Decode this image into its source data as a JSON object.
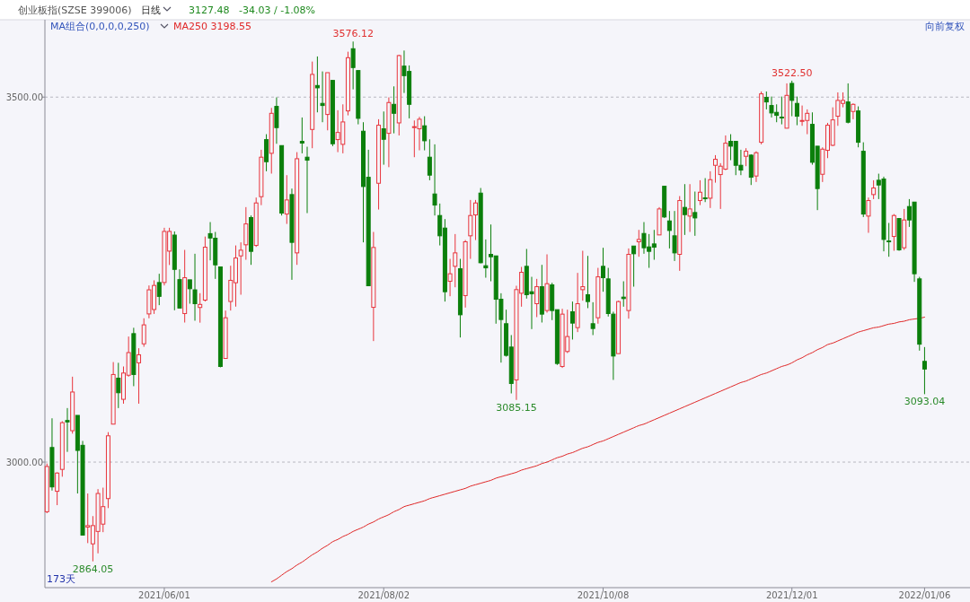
{
  "chart_data": {
    "type": "candlestick",
    "title": "创业板指(SZSE 399006)",
    "subtitle": "日线",
    "annotations": [
      "3127.48",
      "-34.03 / -1.08%",
      "MA组合(0,0,0,0,250)",
      "向前复权",
      "173天",
      {
        "text": "3576.12",
        "y": 3576.12
      },
      {
        "text": "3522.50",
        "y": 3522.5
      },
      {
        "text": "3085.15",
        "y": 3085.15
      },
      {
        "text": "3093.04",
        "y": 3093.04
      },
      {
        "text": "2864.05",
        "y": 2864.05
      }
    ],
    "ylim": [
      2828,
      3606
    ],
    "categories": [
      null,
      null,
      null,
      null,
      null,
      null,
      null,
      null,
      null,
      null,
      null,
      null,
      null,
      null,
      null,
      null,
      null,
      null,
      null,
      null,
      null,
      null,
      null,
      "2021/06/01",
      null,
      null,
      null,
      null,
      null,
      null,
      null,
      null,
      null,
      null,
      null,
      null,
      null,
      null,
      null,
      null,
      null,
      null,
      null,
      null,
      null,
      null,
      null,
      null,
      null,
      null,
      null,
      null,
      null,
      null,
      null,
      null,
      null,
      null,
      null,
      null,
      null,
      null,
      null,
      null,
      null,
      null,
      "2021/08/02",
      null,
      null,
      null,
      null,
      null,
      null,
      null,
      null,
      null,
      null,
      null,
      null,
      null,
      null,
      null,
      null,
      null,
      null,
      null,
      null,
      null,
      null,
      null,
      null,
      null,
      null,
      null,
      null,
      null,
      null,
      null,
      null,
      null,
      null,
      null,
      null,
      null,
      null,
      null,
      null,
      null,
      null,
      "2021/10/08",
      null,
      null,
      null,
      null,
      null,
      null,
      null,
      null,
      null,
      null,
      null,
      null,
      null,
      null,
      null,
      null,
      null,
      null,
      null,
      null,
      null,
      null,
      null,
      null,
      null,
      null,
      null,
      null,
      null,
      null,
      null,
      null,
      null,
      null,
      null,
      null,
      "2021/12/01",
      null,
      null,
      null,
      null,
      null,
      null,
      null,
      null,
      null,
      null,
      null,
      null,
      null,
      null,
      null,
      null,
      null,
      null,
      null,
      null,
      null,
      null,
      null,
      null,
      null,
      "2022/01/06"
    ],
    "yticks": [
      {
        "value": 3000,
        "label": "3000.00"
      },
      {
        "value": 3500,
        "label": "3500.00"
      }
    ],
    "grid": "y",
    "legend": "top left",
    "ohlc": [
      [
        2932,
        2998,
        2930,
        2994
      ],
      [
        3020,
        3060,
        2961,
        2966
      ],
      [
        2960,
        2986,
        2941,
        2985
      ],
      [
        2990,
        3056,
        2980,
        3054
      ],
      [
        3057,
        3074,
        3014,
        3055
      ],
      [
        3043,
        3117,
        3039,
        3096
      ],
      [
        3064,
        3064,
        2957,
        3016
      ],
      [
        3023,
        3029,
        2900,
        2900
      ],
      [
        2911,
        2957,
        2889,
        2913
      ],
      [
        2888,
        2926,
        2864.05,
        2913
      ],
      [
        2905,
        2963,
        2875,
        2957
      ],
      [
        2915,
        2965,
        2904,
        2939
      ],
      [
        2950,
        3041,
        2937,
        3036
      ],
      [
        3052,
        3137,
        3052,
        3120
      ],
      [
        3115,
        3136,
        3074,
        3095
      ],
      [
        3086,
        3131,
        3080,
        3122
      ],
      [
        3119,
        3172,
        3117,
        3150
      ],
      [
        3176,
        3184,
        3104,
        3120
      ],
      [
        3136,
        3156,
        3080,
        3147
      ],
      [
        3162,
        3197,
        3158,
        3188
      ],
      [
        3203,
        3242,
        3197,
        3236
      ],
      [
        3209,
        3249,
        3203,
        3242
      ],
      [
        3246,
        3258,
        3215,
        3227
      ],
      [
        3246,
        3321,
        3242,
        3316
      ],
      [
        3289,
        3321,
        3270,
        3316
      ],
      [
        3311,
        3316,
        3208,
        3264
      ],
      [
        3250,
        3264,
        3211,
        3211
      ],
      [
        3203.5,
        3290.7,
        3191.2,
        3252.6
      ],
      [
        3249.7,
        3249.7,
        3217,
        3237.5
      ],
      [
        3236,
        3285.4,
        3193.7,
        3217
      ],
      [
        3211.8,
        3231.4,
        3191,
        3216
      ],
      [
        3221.9,
        3309,
        3220,
        3294.4
      ],
      [
        3313,
        3328.8,
        3276.4,
        3307
      ],
      [
        3306.7,
        3315.3,
        3251,
        3270.2
      ],
      [
        3267.4,
        3267.4,
        3129.8,
        3131
      ],
      [
        3142,
        3207.6,
        3142,
        3197.7
      ],
      [
        3220,
        3269,
        3207.6,
        3249
      ],
      [
        3245.7,
        3296.8,
        3213,
        3279.6
      ],
      [
        3282.5,
        3301,
        3229.3,
        3290.3
      ],
      [
        3297.7,
        3349.3,
        3277.2,
        3326.3
      ],
      [
        3335,
        3337.8,
        3270.2,
        3288.7
      ],
      [
        3296.8,
        3362.4,
        3294.8,
        3355
      ],
      [
        3363.6,
        3427.9,
        3352,
        3417.7
      ],
      [
        3441.8,
        3449.2,
        3398.4,
        3411.5
      ],
      [
        3423,
        3485.2,
        3395.2,
        3477.8
      ],
      [
        3487.3,
        3499.6,
        3436.1,
        3458.2
      ],
      [
        3433.6,
        3433.6,
        3337.8,
        3341.1
      ],
      [
        3339.8,
        3393.1,
        3326.3,
        3359.1
      ],
      [
        3366.5,
        3374.7,
        3249.7,
        3301
      ],
      [
        3286.6,
        3424.6,
        3270.2,
        3415.6
      ],
      [
        3439.4,
        3472.1,
        3423,
        3437
      ],
      [
        3417.7,
        3432,
        3341.1,
        3413.6
      ],
      [
        3455.7,
        3548.7,
        3430,
        3531.1
      ],
      [
        3515.9,
        3555.7,
        3479.1,
        3512.7
      ],
      [
        3491.4,
        3535.2,
        3465.6,
        3488.5
      ],
      [
        3476.2,
        3533.5,
        3454.5,
        3533.5
      ],
      [
        3522.9,
        3522.9,
        3432.8,
        3436.1
      ],
      [
        3441.8,
        3482,
        3424.6,
        3451.6
      ],
      [
        3435.3,
        3490.1,
        3423,
        3466
      ],
      [
        3481.1,
        3562.2,
        3475,
        3554
      ],
      [
        3566.3,
        3576.12,
        3510.6,
        3540.5
      ],
      [
        3536.4,
        3536.4,
        3462.7,
        3470.9
      ],
      [
        3453.3,
        3465.6,
        3301,
        3377.5
      ],
      [
        3390.2,
        3427.9,
        3241.6,
        3241.6
      ],
      [
        3212,
        3315.3,
        3165.8,
        3294
      ],
      [
        3382,
        3469.7,
        3346,
        3461.5
      ],
      [
        3456.6,
        3480.3,
        3407.4,
        3442.2
      ],
      [
        3450.4,
        3499.6,
        3404,
        3492.6
      ],
      [
        3490.1,
        3514.7,
        3450.4,
        3477.8
      ],
      [
        3464.7,
        3558.1,
        3447.5,
        3556.9
      ],
      [
        3542.5,
        3563.8,
        3505.7,
        3529.4
      ],
      [
        3535.2,
        3543.4,
        3470.9,
        3490.1
      ],
      [
        3458.6,
        3468,
        3417.7,
        3459.5
      ],
      [
        3456.6,
        3473,
        3427.1,
        3469.7
      ],
      [
        3460.7,
        3473.8,
        3427.1,
        3440.2
      ],
      [
        3417.7,
        3442.2,
        3386.1,
        3393.1
      ],
      [
        3367.3,
        3435.3,
        3337.8,
        3352.1
      ],
      [
        3337.8,
        3354.2,
        3296.8,
        3310
      ],
      [
        3320.6,
        3332.9,
        3219.9,
        3233.4
      ],
      [
        3247.7,
        3278.4,
        3227.2,
        3258
      ],
      [
        3268.2,
        3312.4,
        3239.5,
        3286.6
      ],
      [
        3264.9,
        3278.4,
        3170.7,
        3201.8
      ],
      [
        3228.1,
        3304.2,
        3211.7,
        3301.8
      ],
      [
        3310,
        3359.1,
        3278.4,
        3337.8
      ],
      [
        3338.6,
        3359.1,
        3304.2,
        3355
      ],
      [
        3368.5,
        3375.5,
        3272.3,
        3273.1
      ],
      [
        3269,
        3305,
        3252.6,
        3266.1
      ],
      [
        3284.6,
        3325.5,
        3247.7,
        3281.3
      ],
      [
        3282.5,
        3282.5,
        3189.6,
        3223.1
      ],
      [
        3223.1,
        3231.3,
        3136.3,
        3195.3
      ],
      [
        3189.6,
        3208.8,
        3144.5,
        3146.2
      ],
      [
        3157.6,
        3174,
        3094.1,
        3107.7
      ],
      [
        3112.6,
        3241.6,
        3085.15,
        3236.3
      ],
      [
        3231.3,
        3267.4,
        3212.9,
        3260
      ],
      [
        3268.2,
        3292,
        3224,
        3229.3
      ],
      [
        3233.4,
        3253.8,
        3182.2,
        3230.5
      ],
      [
        3217,
        3251,
        3198.6,
        3240.3
      ],
      [
        3240.3,
        3270.2,
        3191.2,
        3202.7
      ],
      [
        3207.6,
        3284.6,
        3204.7,
        3244.4
      ],
      [
        3242.8,
        3245.7,
        3194.5,
        3207.6
      ],
      [
        3208.8,
        3208.8,
        3133.1,
        3135.1
      ],
      [
        3131,
        3210,
        3129,
        3202.7
      ],
      [
        3151.5,
        3208.8,
        3149.4,
        3172
      ],
      [
        3206,
        3219.9,
        3167.9,
        3190.4
      ],
      [
        3184.2,
        3259.2,
        3178.1,
        3217
      ],
      [
        3236.2,
        3289.5,
        3221.1,
        3240.3
      ],
      [
        3229.3,
        3282.5,
        3210.9,
        3219.9
      ],
      [
        3189.6,
        3219,
        3174,
        3183
      ],
      [
        3197.7,
        3266.1,
        3189.6,
        3253.8
      ],
      [
        3268.2,
        3293.6,
        3233.4,
        3252.6
      ],
      [
        3251,
        3266.1,
        3199.4,
        3203.5
      ],
      [
        3202.7,
        3206,
        3112.6,
        3145.3
      ],
      [
        3148.6,
        3221.1,
        3148.6,
        3219.9
      ],
      [
        3226,
        3247.7,
        3212.9,
        3224
      ],
      [
        3207.6,
        3292.7,
        3196.5,
        3284.6
      ],
      [
        3296,
        3296,
        3240.3,
        3285.4
      ],
      [
        3301.8,
        3318.1,
        3281.3,
        3305
      ],
      [
        3313.2,
        3328.8,
        3285.4,
        3293.6
      ],
      [
        3294.8,
        3312.4,
        3266.1,
        3288.7
      ],
      [
        3298.9,
        3318.1,
        3277.2,
        3294.4
      ],
      [
        3311.2,
        3349.3,
        3311.2,
        3346.8
      ],
      [
        3377.9,
        3377.9,
        3334.5,
        3335.8
      ],
      [
        3330.4,
        3344,
        3292.7,
        3317.3
      ],
      [
        3310,
        3344,
        3275.5,
        3286.6
      ],
      [
        3284.6,
        3364.4,
        3262,
        3358.3
      ],
      [
        3348.9,
        3380.8,
        3311.2,
        3339
      ],
      [
        3337,
        3380.8,
        3315.3,
        3346.8
      ],
      [
        3341.9,
        3370.6,
        3310,
        3334.5
      ],
      [
        3358.3,
        3386.1,
        3352.1,
        3369.7
      ],
      [
        3362,
        3389,
        3356.2,
        3361.5
      ],
      [
        3361.5,
        3398.4,
        3348.1,
        3386.9
      ],
      [
        3406.6,
        3420.5,
        3382.8,
        3414.8
      ],
      [
        3393.9,
        3409.5,
        3346.8,
        3405.4
      ],
      [
        3401.3,
        3447.5,
        3400,
        3436.9
      ],
      [
        3439.4,
        3449.2,
        3413.6,
        3432.8
      ],
      [
        3439.4,
        3439.4,
        3393.1,
        3406.6
      ],
      [
        3406.6,
        3427.9,
        3393.1,
        3400
      ],
      [
        3418.9,
        3430,
        3405.4,
        3425.8
      ],
      [
        3420.5,
        3421.7,
        3379.6,
        3390.2
      ],
      [
        3391.9,
        3425.8,
        3383.7,
        3423.8
      ],
      [
        3438.1,
        3507.7,
        3435.3,
        3504.5
      ],
      [
        3499.6,
        3507.7,
        3483.2,
        3493.4
      ],
      [
        3488.5,
        3500.8,
        3472.1,
        3478.3
      ],
      [
        3479.1,
        3490.1,
        3465.6,
        3475
      ],
      [
        3472.6,
        3500.8,
        3462.7,
        3472.1
      ],
      [
        3457.4,
        3518.8,
        3457.4,
        3502.4
      ],
      [
        3518.8,
        3522.5,
        3473.8,
        3495.5
      ],
      [
        3491.4,
        3500.8,
        3461.5,
        3473.8
      ],
      [
        3467,
        3488.5,
        3460.7,
        3468
      ],
      [
        3468,
        3483.2,
        3449.2,
        3477.8
      ],
      [
        3462.7,
        3479.1,
        3407.4,
        3410.7
      ],
      [
        3432.8,
        3432.8,
        3345.2,
        3374.7
      ],
      [
        3394.3,
        3431.2,
        3383.7,
        3428.7
      ],
      [
        3427.1,
        3464.7,
        3416.4,
        3461.5
      ],
      [
        3434,
        3486,
        3432.8,
        3468.8
      ],
      [
        3473.8,
        3506.5,
        3460.7,
        3495.5
      ],
      [
        3491.4,
        3506.5,
        3486,
        3495.5
      ],
      [
        3493.4,
        3518.8,
        3464,
        3465.6
      ],
      [
        3480.3,
        3491.4,
        3469.7,
        3490.1
      ],
      [
        3481.1,
        3487.3,
        3431.2,
        3438.1
      ],
      [
        3425.8,
        3438.1,
        3335.7,
        3339.8
      ],
      [
        3337,
        3362.4,
        3314.1,
        3358.3
      ],
      [
        3366.5,
        3386.1,
        3360.3,
        3375.5
      ],
      [
        3386.1,
        3395.1,
        3360.3,
        3379.6
      ],
      [
        3387.8,
        3391,
        3288.7,
        3305
      ],
      [
        3303,
        3327.6,
        3281.3,
        3302.5
      ],
      [
        3309.1,
        3339.8,
        3289.5,
        3337.8
      ],
      [
        3333.7,
        3333.7,
        3289.5,
        3290.7
      ],
      [
        3293.6,
        3346.8,
        3290.7,
        3331.7
      ],
      [
        3350.1,
        3360.3,
        3322.2,
        3331.7
      ],
      [
        3356.2,
        3356.2,
        3246.9,
        3258
      ],
      [
        3251,
        3253.8,
        3152.7,
        3161.51
      ],
      [
        3138,
        3157.6,
        3093.04,
        3127.48
      ]
    ],
    "series": [
      {
        "type": "line",
        "name": "MA250 3198.55",
        "color": "#e02828",
        "values": [
          null,
          null,
          null,
          null,
          null,
          null,
          null,
          null,
          null,
          null,
          null,
          null,
          null,
          null,
          null,
          null,
          null,
          null,
          null,
          null,
          null,
          null,
          null,
          null,
          null,
          null,
          null,
          null,
          null,
          null,
          null,
          null,
          null,
          null,
          null,
          null,
          null,
          null,
          null,
          null,
          null,
          null,
          null,
          null,
          2836,
          2840,
          2845,
          2850,
          2854,
          2859,
          2863,
          2868,
          2873,
          2877,
          2882,
          2886,
          2891,
          2894,
          2898,
          2901,
          2905,
          2908,
          2911,
          2915,
          2918,
          2922,
          2925,
          2928,
          2932,
          2935,
          2939,
          2941,
          2943,
          2945,
          2947,
          2950,
          2952,
          2954,
          2956,
          2958,
          2960,
          2962,
          2964,
          2967,
          2969,
          2971,
          2973,
          2975,
          2978,
          2980,
          2982,
          2984,
          2986,
          2989,
          2991,
          2993,
          2995,
          2998,
          3000,
          3003,
          3006,
          3008,
          3011,
          3013,
          3016,
          3019,
          3021,
          3024,
          3027,
          3029,
          3032,
          3035,
          3038,
          3041,
          3044,
          3047,
          3050,
          3052,
          3055,
          3058,
          3061,
          3064,
          3067,
          3070,
          3073,
          3076,
          3079,
          3082,
          3085,
          3088,
          3091,
          3094,
          3097,
          3100,
          3103,
          3106,
          3109,
          3111,
          3114,
          3117,
          3120,
          3122,
          3125,
          3128,
          3131,
          3133,
          3136,
          3140,
          3143,
          3147,
          3150,
          3154,
          3157,
          3161,
          3163,
          3166,
          3169,
          3172,
          3175,
          3178,
          3180,
          3182,
          3184,
          3185,
          3187,
          3189,
          3190,
          3192,
          3193,
          3195,
          3196,
          3197,
          3198.55
        ]
      }
    ]
  }
}
